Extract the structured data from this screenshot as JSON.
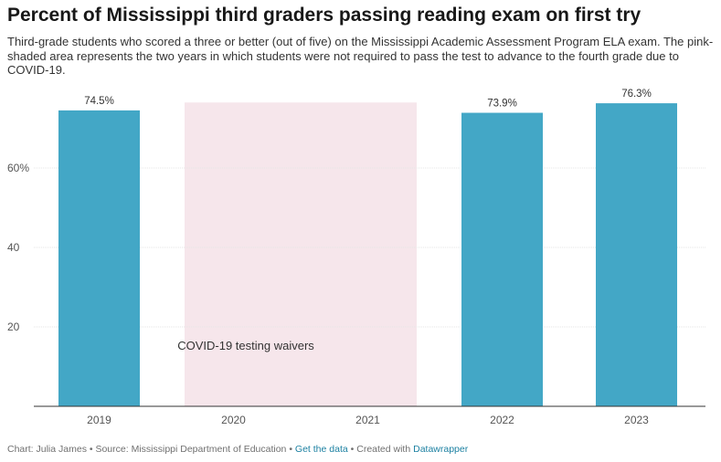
{
  "header": {
    "title": "Percent of Mississippi third graders passing reading exam on first try",
    "subtitle": "Third-grade students who scored a three or better (out of five) on the Mississippi Academic Assessment Program ELA exam. The pink-shaded area represents the two years in which students were not required to pass the test to advance to the fourth grade due to COVID-19."
  },
  "footer": {
    "chart_credit": "Chart: Julia James",
    "source": "Source: Mississippi Department of Education",
    "get_data": "Get the data",
    "created_with": "Created with",
    "tool": "Datawrapper",
    "separator": " • "
  },
  "colors": {
    "bar": "#43a7c6",
    "shade": "#f6e6eb",
    "axis": "#333333",
    "grid": "#e5e5e5"
  },
  "chart_data": {
    "type": "bar",
    "categories": [
      "2019",
      "2020",
      "2021",
      "2022",
      "2023"
    ],
    "values": [
      74.5,
      null,
      null,
      73.9,
      76.3
    ],
    "value_labels": [
      "74.5%",
      "",
      "",
      "73.9%",
      "76.3%"
    ],
    "y_ticks": [
      {
        "value": 20,
        "label": "20"
      },
      {
        "value": 40,
        "label": "40"
      },
      {
        "value": 60,
        "label": "60%"
      }
    ],
    "ylim": [
      0,
      80
    ],
    "grid": true,
    "highlight_range": {
      "from": "2020",
      "to": "2021",
      "label": "COVID-19 testing waivers"
    }
  }
}
